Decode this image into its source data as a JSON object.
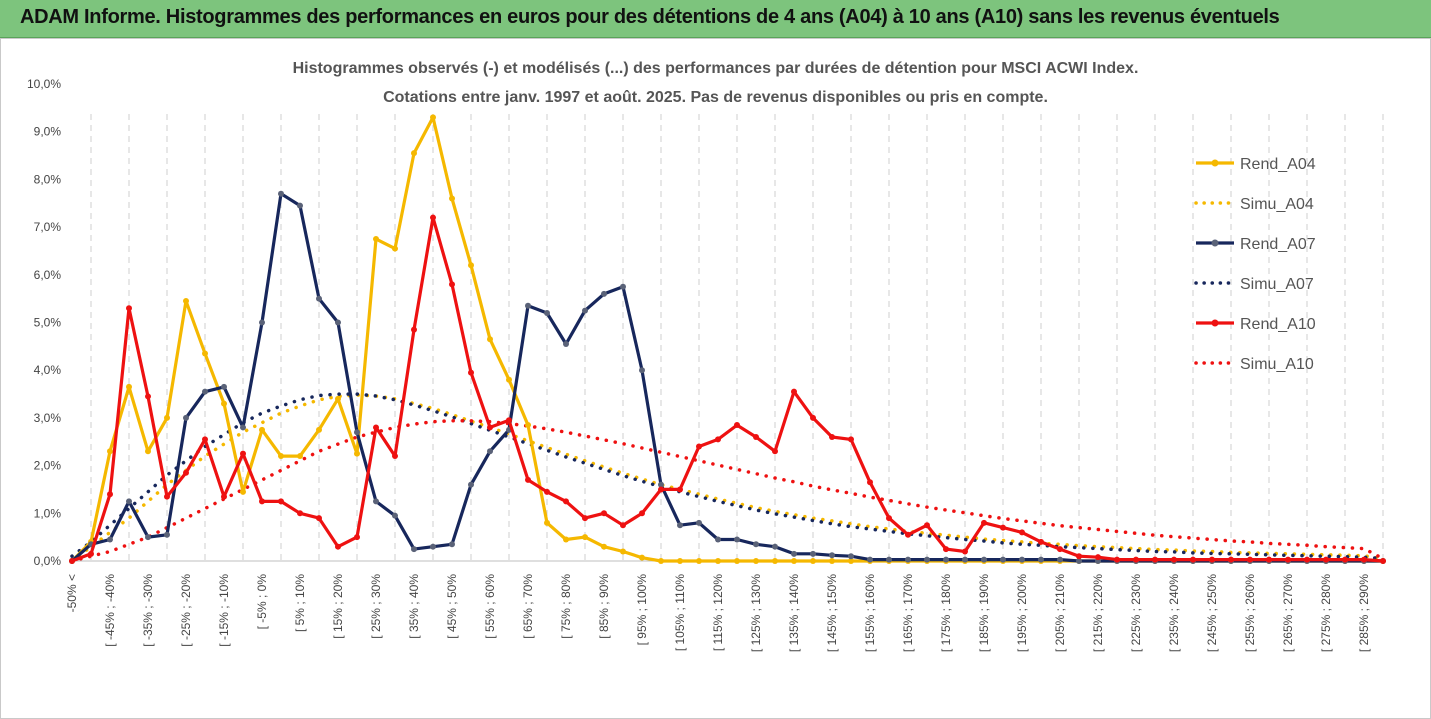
{
  "banner": {
    "title": "ADAM Informe. Histogrammes des performances en euros pour des détentions de 4 ans (A04) à 10 ans (A10) sans les revenus éventuels"
  },
  "colors": {
    "banner_bg": "#7dc47d",
    "a04": "#f5b800",
    "a07": "#17275c",
    "a10": "#ee1111"
  },
  "chart_data": {
    "type": "line",
    "title": "Histogrammes observés (-) et modélisés (...) des performances par durées de détention pour MSCI ACWI Index.",
    "subtitle": "Cotations entre janv. 1997 et août. 2025. Pas de revenus disponibles ou pris en compte.",
    "ylim": [
      0,
      10
    ],
    "ytick_labels": [
      "0,0%",
      "1,0%",
      "2,0%",
      "3,0%",
      "4,0%",
      "5,0%",
      "6,0%",
      "7,0%",
      "8,0%",
      "9,0%",
      "10,0%"
    ],
    "xtick_labels": [
      "-50% <",
      "[ -45% ; -40%",
      "[ -35% ; -30%",
      "[ -25% ; -20%",
      "[ -15% ; -10%",
      "[ -5% ; 0%",
      "[ 5% ; 10%",
      "[ 15% ; 20%",
      "[ 25% ; 30%",
      "[ 35% ; 40%",
      "[ 45% ; 50%",
      "[ 55% ; 60%",
      "[ 65% ; 70%",
      "[ 75% ; 80%",
      "[ 85% ; 90%",
      "[ 95% ; 100%",
      "[ 105% ; 110%",
      "[ 115% ; 120%",
      "[ 125% ; 130%",
      "[ 135% ; 140%",
      "[ 145% ; 150%",
      "[ 155% ; 160%",
      "[ 165% ; 170%",
      "[ 175% ; 180%",
      "[ 185% ; 190%",
      "[ 195% ; 200%",
      "[ 205% ; 210%",
      "[ 215% ; 220%",
      "[ 225% ; 230%",
      "[ 235% ; 240%",
      "[ 245% ; 250%",
      "[ 255% ; 260%",
      "[ 265% ; 270%",
      "[ 275% ; 280%",
      "[ 285% ; 290%"
    ],
    "legend_position": "right",
    "series": [
      {
        "name": "Rend_A04",
        "style": "solid",
        "color": "#f5b800",
        "values": [
          0.0,
          0.4,
          2.3,
          3.65,
          2.3,
          3.0,
          5.45,
          4.35,
          3.3,
          1.45,
          2.75,
          2.2,
          2.2,
          2.75,
          3.4,
          2.25,
          6.75,
          6.55,
          8.55,
          9.3,
          7.6,
          6.2,
          4.65,
          3.8,
          2.85,
          0.8,
          0.45,
          0.5,
          0.3,
          0.2,
          0.07,
          0.0,
          0.0,
          0.0,
          0.0,
          0.0,
          0.0,
          0.0,
          0.0,
          0.0,
          0.0,
          0.0,
          0.0,
          0.0,
          0.0,
          0.0,
          0.0,
          0.0,
          0.0,
          0.0,
          0.0,
          0.0,
          0.0,
          0.0,
          0.0,
          0.0,
          0.0,
          0.0,
          0.0,
          0.0,
          0.0,
          0.0,
          0.0,
          0.0,
          0.0,
          0.0,
          0.0,
          0.0,
          0.0,
          0.0
        ]
      },
      {
        "name": "Simu_A04",
        "style": "dotted",
        "color": "#f5b800",
        "values": [
          0.0,
          0.3,
          0.6,
          0.9,
          1.25,
          1.6,
          1.9,
          2.2,
          2.45,
          2.7,
          2.9,
          3.1,
          3.25,
          3.38,
          3.45,
          3.48,
          3.46,
          3.4,
          3.3,
          3.2,
          3.07,
          2.93,
          2.8,
          2.66,
          2.52,
          2.38,
          2.24,
          2.1,
          1.97,
          1.84,
          1.72,
          1.6,
          1.5,
          1.4,
          1.3,
          1.21,
          1.12,
          1.04,
          0.97,
          0.9,
          0.84,
          0.78,
          0.72,
          0.67,
          0.62,
          0.58,
          0.54,
          0.5,
          0.46,
          0.43,
          0.4,
          0.37,
          0.35,
          0.32,
          0.3,
          0.28,
          0.26,
          0.24,
          0.23,
          0.21,
          0.2,
          0.18,
          0.17,
          0.16,
          0.15,
          0.14,
          0.13,
          0.12,
          0.11,
          0.05
        ]
      },
      {
        "name": "Rend_A07",
        "style": "solid",
        "color": "#17275c",
        "values": [
          0.0,
          0.35,
          0.45,
          1.25,
          0.5,
          0.55,
          3.0,
          3.55,
          3.65,
          2.8,
          5.0,
          7.7,
          7.45,
          5.5,
          5.0,
          2.7,
          1.25,
          0.95,
          0.25,
          0.3,
          0.35,
          1.6,
          2.3,
          2.75,
          5.35,
          5.2,
          4.55,
          5.25,
          5.6,
          5.75,
          4.0,
          1.6,
          0.75,
          0.8,
          0.45,
          0.45,
          0.35,
          0.3,
          0.15,
          0.15,
          0.12,
          0.1,
          0.03,
          0.03,
          0.03,
          0.03,
          0.03,
          0.03,
          0.03,
          0.03,
          0.03,
          0.03,
          0.03,
          0.0,
          0.0,
          0.0,
          0.0,
          0.0,
          0.0,
          0.0,
          0.0,
          0.0,
          0.0,
          0.0,
          0.0,
          0.0,
          0.0,
          0.0,
          0.0,
          0.0
        ]
      },
      {
        "name": "Simu_A07",
        "style": "dotted",
        "color": "#17275c",
        "values": [
          0.1,
          0.4,
          0.75,
          1.1,
          1.45,
          1.8,
          2.1,
          2.4,
          2.65,
          2.9,
          3.1,
          3.25,
          3.38,
          3.47,
          3.5,
          3.5,
          3.46,
          3.38,
          3.27,
          3.15,
          3.02,
          2.88,
          2.74,
          2.6,
          2.46,
          2.32,
          2.18,
          2.05,
          1.92,
          1.79,
          1.67,
          1.56,
          1.45,
          1.35,
          1.25,
          1.16,
          1.07,
          0.99,
          0.92,
          0.85,
          0.78,
          0.72,
          0.67,
          0.62,
          0.57,
          0.53,
          0.49,
          0.45,
          0.42,
          0.38,
          0.35,
          0.33,
          0.3,
          0.28,
          0.26,
          0.24,
          0.22,
          0.2,
          0.19,
          0.17,
          0.16,
          0.15,
          0.14,
          0.13,
          0.12,
          0.11,
          0.1,
          0.09,
          0.08,
          0.05
        ]
      },
      {
        "name": "Rend_A10",
        "style": "solid",
        "color": "#ee1111",
        "values": [
          0.0,
          0.15,
          1.4,
          5.3,
          3.45,
          1.35,
          1.85,
          2.55,
          1.35,
          2.25,
          1.25,
          1.25,
          1.0,
          0.9,
          0.3,
          0.5,
          2.8,
          2.2,
          4.85,
          7.2,
          5.8,
          3.95,
          2.8,
          2.95,
          1.7,
          1.45,
          1.25,
          0.9,
          1.0,
          0.75,
          1.0,
          1.5,
          1.5,
          2.4,
          2.55,
          2.85,
          2.6,
          2.3,
          3.55,
          3.0,
          2.6,
          2.55,
          1.65,
          0.9,
          0.55,
          0.75,
          0.25,
          0.2,
          0.8,
          0.7,
          0.6,
          0.4,
          0.25,
          0.1,
          0.08,
          0.03,
          0.03,
          0.03,
          0.03,
          0.03,
          0.03,
          0.03,
          0.03,
          0.03,
          0.03,
          0.03,
          0.03,
          0.03,
          0.03,
          0.0
        ]
      },
      {
        "name": "Simu_A10",
        "style": "dotted",
        "color": "#ee1111",
        "values": [
          0.0,
          0.1,
          0.2,
          0.35,
          0.5,
          0.7,
          0.9,
          1.1,
          1.3,
          1.5,
          1.7,
          1.9,
          2.1,
          2.3,
          2.45,
          2.6,
          2.7,
          2.8,
          2.87,
          2.92,
          2.94,
          2.94,
          2.92,
          2.88,
          2.83,
          2.77,
          2.7,
          2.62,
          2.54,
          2.46,
          2.37,
          2.28,
          2.19,
          2.1,
          2.01,
          1.92,
          1.83,
          1.74,
          1.66,
          1.57,
          1.49,
          1.42,
          1.34,
          1.27,
          1.2,
          1.13,
          1.07,
          1.01,
          0.95,
          0.89,
          0.84,
          0.79,
          0.74,
          0.7,
          0.66,
          0.62,
          0.58,
          0.54,
          0.51,
          0.48,
          0.45,
          0.42,
          0.4,
          0.37,
          0.35,
          0.33,
          0.3,
          0.28,
          0.26,
          0.05
        ]
      }
    ]
  }
}
